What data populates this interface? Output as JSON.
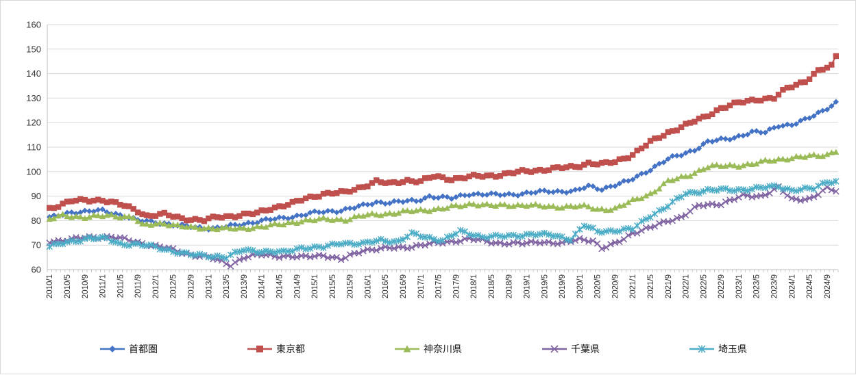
{
  "chart_data": {
    "type": "line",
    "title": "",
    "xlabel": "",
    "ylabel": "",
    "ylim": [
      60,
      160
    ],
    "yticks": [
      60,
      70,
      80,
      90,
      100,
      110,
      120,
      130,
      140,
      150,
      160
    ],
    "x_start": "2010/1",
    "x_end": "2024/11",
    "x_tick_labels": [
      "2010/1",
      "2010/5",
      "2010/9",
      "2011/1",
      "2011/5",
      "2011/9",
      "2012/1",
      "2012/5",
      "2012/9",
      "2013/1",
      "2013/5",
      "2013/9",
      "2014/1",
      "2014/5",
      "2014/9",
      "2015/1",
      "2015/5",
      "2015/9",
      "2016/1",
      "2016/5",
      "2016/9",
      "2017/1",
      "2017/5",
      "2017/9",
      "2018/1",
      "2018/5",
      "2018/9",
      "2019/1",
      "2019/5",
      "2019/9",
      "2020/1",
      "2020/5",
      "2020/9",
      "2021/1",
      "2021/5",
      "2021/9",
      "2022/1",
      "2022/5",
      "2022/9",
      "2023/1",
      "2023/5",
      "2023/9",
      "2024/1",
      "2024/5",
      "2024/9"
    ],
    "grid": "horizontal",
    "legend_position": "bottom",
    "series": [
      {
        "name": "首都圏",
        "color": "#4472C4",
        "marker": "diamond",
        "anchors": [
          [
            "2010/1",
            81
          ],
          [
            "2010/6",
            83.5
          ],
          [
            "2011/1",
            84
          ],
          [
            "2011/6",
            82
          ],
          [
            "2011/9",
            80
          ],
          [
            "2012/3",
            79
          ],
          [
            "2012/6",
            78
          ],
          [
            "2012/12",
            77
          ],
          [
            "2013/3",
            77
          ],
          [
            "2013/7",
            78
          ],
          [
            "2014/1",
            80
          ],
          [
            "2014/6",
            81
          ],
          [
            "2014/12",
            83
          ],
          [
            "2015/6",
            84
          ],
          [
            "2015/12",
            86
          ],
          [
            "2016/3",
            87.5
          ],
          [
            "2016/6",
            87.5
          ],
          [
            "2016/12",
            88
          ],
          [
            "2017/3",
            90
          ],
          [
            "2017/8",
            89
          ],
          [
            "2017/12",
            91
          ],
          [
            "2018/6",
            90.5
          ],
          [
            "2018/12",
            91
          ],
          [
            "2019/6",
            92
          ],
          [
            "2019/12",
            92
          ],
          [
            "2020/3",
            94
          ],
          [
            "2020/6",
            93
          ],
          [
            "2020/12",
            96
          ],
          [
            "2021/4",
            100
          ],
          [
            "2021/9",
            105
          ],
          [
            "2021/12",
            107
          ],
          [
            "2022/3",
            109
          ],
          [
            "2022/6",
            112
          ],
          [
            "2022/12",
            114
          ],
          [
            "2023/4",
            116
          ],
          [
            "2023/7",
            116
          ],
          [
            "2023/10",
            119
          ],
          [
            "2024/1",
            119
          ],
          [
            "2024/4",
            121
          ],
          [
            "2024/7",
            124
          ],
          [
            "2024/11",
            128
          ]
        ]
      },
      {
        "name": "東京都",
        "color": "#C0504D",
        "marker": "square",
        "anchors": [
          [
            "2010/1",
            85
          ],
          [
            "2010/6",
            88
          ],
          [
            "2011/1",
            88.5
          ],
          [
            "2011/6",
            86
          ],
          [
            "2011/9",
            84
          ],
          [
            "2011/11",
            82
          ],
          [
            "2012/3",
            82.5
          ],
          [
            "2012/7",
            81
          ],
          [
            "2012/12",
            80
          ],
          [
            "2013/3",
            81.5
          ],
          [
            "2013/7",
            82
          ],
          [
            "2013/12",
            83
          ],
          [
            "2014/3",
            85
          ],
          [
            "2014/8",
            87
          ],
          [
            "2014/11",
            89
          ],
          [
            "2015/3",
            91
          ],
          [
            "2015/8",
            91.5
          ],
          [
            "2015/12",
            94
          ],
          [
            "2016/3",
            96
          ],
          [
            "2016/6",
            95
          ],
          [
            "2016/10",
            96.5
          ],
          [
            "2017/1",
            96
          ],
          [
            "2017/4",
            98
          ],
          [
            "2017/8",
            97
          ],
          [
            "2018/1",
            98
          ],
          [
            "2018/6",
            98.5
          ],
          [
            "2018/12",
            100
          ],
          [
            "2019/6",
            101
          ],
          [
            "2019/12",
            102
          ],
          [
            "2020/3",
            103.5
          ],
          [
            "2020/6",
            103
          ],
          [
            "2020/9",
            104
          ],
          [
            "2021/1",
            107
          ],
          [
            "2021/5",
            112
          ],
          [
            "2021/9",
            116
          ],
          [
            "2022/1",
            119
          ],
          [
            "2022/5",
            122
          ],
          [
            "2022/9",
            126
          ],
          [
            "2023/1",
            128
          ],
          [
            "2023/5",
            129.5
          ],
          [
            "2023/9",
            130
          ],
          [
            "2023/12",
            134
          ],
          [
            "2024/4",
            137
          ],
          [
            "2024/7",
            141
          ],
          [
            "2024/10",
            143
          ],
          [
            "2024/11",
            147
          ]
        ]
      },
      {
        "name": "神奈川県",
        "color": "#9BBB59",
        "marker": "triangle",
        "anchors": [
          [
            "2010/1",
            80.5
          ],
          [
            "2010/4",
            82
          ],
          [
            "2010/9",
            81.5
          ],
          [
            "2011/3",
            82
          ],
          [
            "2011/8",
            81.5
          ],
          [
            "2011/10",
            78
          ],
          [
            "2012/3",
            79
          ],
          [
            "2012/6",
            78
          ],
          [
            "2012/9",
            77
          ],
          [
            "2013/3",
            77
          ],
          [
            "2013/8",
            76.5
          ],
          [
            "2013/12",
            77.5
          ],
          [
            "2014/6",
            78.5
          ],
          [
            "2014/10",
            80
          ],
          [
            "2015/3",
            80.5
          ],
          [
            "2015/8",
            80.5
          ],
          [
            "2015/12",
            82
          ],
          [
            "2016/6",
            83
          ],
          [
            "2016/12",
            84
          ],
          [
            "2017/6",
            85
          ],
          [
            "2017/10",
            86
          ],
          [
            "2018/1",
            87
          ],
          [
            "2018/6",
            86
          ],
          [
            "2019/1",
            86.5
          ],
          [
            "2019/6",
            85.5
          ],
          [
            "2019/12",
            86
          ],
          [
            "2020/3",
            85.5
          ],
          [
            "2020/5",
            84.5
          ],
          [
            "2020/9",
            85
          ],
          [
            "2021/1",
            88
          ],
          [
            "2021/5",
            91
          ],
          [
            "2021/9",
            96
          ],
          [
            "2022/1",
            98
          ],
          [
            "2022/6",
            102
          ],
          [
            "2022/12",
            102.5
          ],
          [
            "2023/4",
            103
          ],
          [
            "2023/8",
            104.5
          ],
          [
            "2023/12",
            105.5
          ],
          [
            "2024/4",
            106
          ],
          [
            "2024/9",
            107
          ],
          [
            "2024/11",
            108.5
          ]
        ]
      },
      {
        "name": "千葉県",
        "color": "#8064A2",
        "marker": "x",
        "anchors": [
          [
            "2010/1",
            71.5
          ],
          [
            "2010/4",
            72
          ],
          [
            "2010/9",
            73
          ],
          [
            "2011/3",
            73.5
          ],
          [
            "2011/8",
            71.5
          ],
          [
            "2011/12",
            70
          ],
          [
            "2012/3",
            69
          ],
          [
            "2012/8",
            66.5
          ],
          [
            "2013/1",
            65
          ],
          [
            "2013/6",
            62
          ],
          [
            "2013/9",
            65
          ],
          [
            "2014/1",
            66
          ],
          [
            "2014/6",
            65.5
          ],
          [
            "2014/10",
            65
          ],
          [
            "2015/3",
            66
          ],
          [
            "2015/7",
            64
          ],
          [
            "2015/12",
            68
          ],
          [
            "2016/4",
            68.5
          ],
          [
            "2016/9",
            69
          ],
          [
            "2017/1",
            70
          ],
          [
            "2017/6",
            71
          ],
          [
            "2017/12",
            72.5
          ],
          [
            "2018/6",
            71
          ],
          [
            "2018/12",
            70.5
          ],
          [
            "2019/4",
            71.5
          ],
          [
            "2019/9",
            70.5
          ],
          [
            "2020/1",
            72.5
          ],
          [
            "2020/4",
            72
          ],
          [
            "2020/6",
            68.5
          ],
          [
            "2020/9",
            70.5
          ],
          [
            "2021/1",
            75
          ],
          [
            "2021/5",
            77
          ],
          [
            "2021/9",
            80
          ],
          [
            "2021/12",
            81.5
          ],
          [
            "2022/4",
            86
          ],
          [
            "2022/9",
            87
          ],
          [
            "2023/2",
            90
          ],
          [
            "2023/6",
            90
          ],
          [
            "2023/10",
            93.5
          ],
          [
            "2024/1",
            88.5
          ],
          [
            "2024/5",
            89
          ],
          [
            "2024/9",
            93
          ],
          [
            "2024/11",
            92
          ]
        ]
      },
      {
        "name": "埼玉県",
        "color": "#4BACC6",
        "marker": "star",
        "anchors": [
          [
            "2010/1",
            69.5
          ],
          [
            "2010/5",
            71
          ],
          [
            "2010/10",
            73
          ],
          [
            "2011/2",
            72.5
          ],
          [
            "2011/5",
            70.5
          ],
          [
            "2011/8",
            70.5
          ],
          [
            "2011/12",
            69.5
          ],
          [
            "2012/4",
            68
          ],
          [
            "2012/9",
            66
          ],
          [
            "2013/3",
            65.5
          ],
          [
            "2013/5",
            65
          ],
          [
            "2013/9",
            68
          ],
          [
            "2014/1",
            67.5
          ],
          [
            "2014/6",
            67
          ],
          [
            "2014/10",
            69
          ],
          [
            "2015/3",
            69
          ],
          [
            "2015/7",
            71
          ],
          [
            "2015/12",
            70.5
          ],
          [
            "2016/4",
            72
          ],
          [
            "2016/8",
            71.5
          ],
          [
            "2016/11",
            74.5
          ],
          [
            "2017/3",
            73
          ],
          [
            "2017/6",
            72
          ],
          [
            "2017/10",
            75.5
          ],
          [
            "2018/3",
            73.5
          ],
          [
            "2018/8",
            73.5
          ],
          [
            "2019/2",
            74.5
          ],
          [
            "2019/7",
            74
          ],
          [
            "2019/11",
            72.5
          ],
          [
            "2020/2",
            78
          ],
          [
            "2020/5",
            75.5
          ],
          [
            "2020/9",
            76
          ],
          [
            "2021/1",
            76.5
          ],
          [
            "2021/5",
            82
          ],
          [
            "2021/9",
            86
          ],
          [
            "2022/1",
            91
          ],
          [
            "2022/6",
            92.5
          ],
          [
            "2022/12",
            92.5
          ],
          [
            "2023/4",
            93
          ],
          [
            "2023/10",
            94
          ],
          [
            "2024/1",
            92.5
          ],
          [
            "2024/6",
            93
          ],
          [
            "2024/9",
            96
          ],
          [
            "2024/11",
            96
          ]
        ]
      }
    ]
  }
}
